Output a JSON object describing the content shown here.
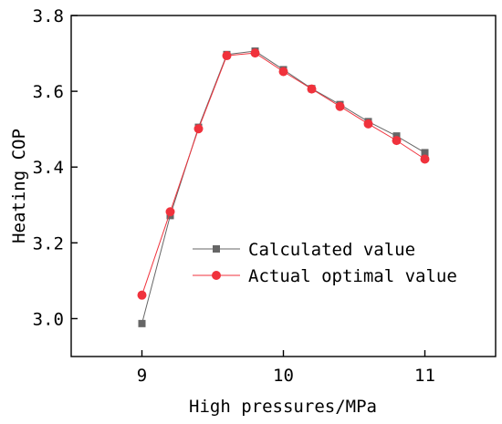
{
  "chart_data": {
    "type": "line",
    "title": "",
    "xlabel": "High pressures/MPa",
    "ylabel": "Heating COP",
    "xlim": [
      8.5,
      11.5
    ],
    "ylim": [
      2.9,
      3.8
    ],
    "xticks": [
      9,
      10,
      11
    ],
    "yticks": [
      3.0,
      3.2,
      3.4,
      3.6,
      3.8
    ],
    "xtick_labels": [
      "9",
      "10",
      "11"
    ],
    "ytick_labels": [
      "3.0",
      "3.2",
      "3.4",
      "3.6",
      "3.8"
    ],
    "grid": false,
    "legend_position": "lower-right",
    "x": [
      9.0,
      9.2,
      9.4,
      9.6,
      9.8,
      10.0,
      10.2,
      10.4,
      10.6,
      10.8,
      11.0
    ],
    "series": [
      {
        "name": "Calculated value",
        "marker": "square",
        "color": "#666666",
        "values": [
          2.987,
          3.272,
          3.505,
          3.697,
          3.706,
          3.657,
          3.607,
          3.565,
          3.52,
          3.482,
          3.438
        ]
      },
      {
        "name": "Actual optimal value",
        "marker": "circle",
        "color": "#f0323c",
        "values": [
          3.062,
          3.282,
          3.501,
          3.694,
          3.701,
          3.652,
          3.606,
          3.56,
          3.514,
          3.47,
          3.421
        ]
      }
    ]
  }
}
